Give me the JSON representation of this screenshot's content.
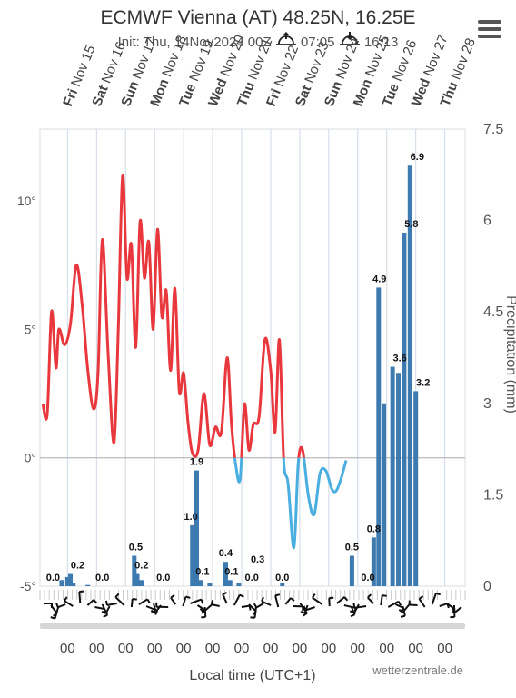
{
  "header": {
    "title": "ECMWF Vienna (AT) 48.25N, 16.25E",
    "init": "Init: Thu, 14Nov2024 00Z",
    "sunrise": "07:05",
    "sunset": "16:13"
  },
  "footer": {
    "xlabel": "Local time (UTC+1)",
    "credit": "wetterzentrale.de",
    "hour_label": "00"
  },
  "icons": {
    "menu": "hamburger-menu-icon",
    "sunrise": "sunrise-icon",
    "sunset": "sunset-icon"
  },
  "colors": {
    "temp_warm": "#e8383d",
    "temp_cold": "#4aaee0",
    "precip": "#3d7ab0",
    "grid": "#cfd8e6"
  },
  "chart_data": {
    "type": "line",
    "days": [
      "Fri Nov 15",
      "Sat Nov 16",
      "Sun Nov 17",
      "Mon Nov 18",
      "Tue Nov 19",
      "Wed Nov 20",
      "Thu Nov 21",
      "Fri Nov 22",
      "Sat Nov 23",
      "Sun Nov 24",
      "Mon Nov 25",
      "Tue Nov 26",
      "Wed Nov 27",
      "Thu Nov 28"
    ],
    "bold_days": [
      "Fri Nov 15",
      "Sat Nov 16",
      "Sun Nov 17",
      "Mon Nov 18",
      "Tue Nov 19",
      "Wed Nov 20",
      "Thu Nov 21"
    ],
    "x_range_days": [
      -0.95,
      13.7
    ],
    "y_left": {
      "ticks": [
        -5,
        0,
        5,
        10
      ],
      "tick_labels": [
        "-5°",
        "0°",
        "5°",
        "10°"
      ],
      "range": [
        -5,
        12.8
      ]
    },
    "y_right": {
      "label": "Precipitation (mm)",
      "ticks": [
        0,
        1.5,
        3,
        4.5,
        6,
        7.5
      ],
      "tick_labels": [
        "0",
        "1.5",
        "3",
        "4.5",
        "6",
        "7.5"
      ],
      "range": [
        0,
        7.5
      ]
    },
    "temperature": {
      "x": [
        -0.85,
        -0.7,
        -0.55,
        -0.4,
        -0.3,
        -0.1,
        0.1,
        0.3,
        0.5,
        0.7,
        0.9,
        1.05,
        1.2,
        1.4,
        1.6,
        1.75,
        1.9,
        2.05,
        2.2,
        2.35,
        2.5,
        2.65,
        2.8,
        2.95,
        3.1,
        3.25,
        3.4,
        3.55,
        3.7,
        3.85,
        4.0,
        4.15,
        4.3,
        4.5,
        4.7,
        4.9,
        5.1,
        5.3,
        5.5,
        5.65,
        5.8,
        5.95,
        6.1,
        6.25,
        6.4,
        6.6,
        6.8,
        7.0,
        7.15,
        7.3,
        7.45,
        7.6,
        7.8,
        7.95,
        8.1,
        8.3,
        8.5,
        8.7,
        8.9,
        9.1,
        9.25,
        9.4,
        9.6,
        9.8,
        10.0,
        10.2,
        10.35,
        10.5,
        10.65,
        10.8,
        10.95,
        11.1,
        11.3,
        11.5,
        11.7,
        11.85,
        12.0,
        12.15,
        12.3,
        12.5,
        12.7,
        12.9,
        13.1,
        13.3,
        13.5
      ],
      "y": [
        2.1,
        1.7,
        5.7,
        3.5,
        5.0,
        4.4,
        5.2,
        7.5,
        6.0,
        3.4,
        1.9,
        3.3,
        8.5,
        4.0,
        0.6,
        5.1,
        11.0,
        7.0,
        8.3,
        4.3,
        9.2,
        7.0,
        8.4,
        5.0,
        8.9,
        5.5,
        6.5,
        3.4,
        6.6,
        2.6,
        3.3,
        1.4,
        0.2,
        0.3,
        2.5,
        0.5,
        1.2,
        1.0,
        3.9,
        1.3,
        -0.3,
        -0.8,
        2.1,
        0.3,
        1.3,
        1.6,
        4.6,
        3.4,
        1.0,
        4.6,
        -0.1,
        -1.0,
        -3.5,
        -0.2,
        0.3,
        -1.5,
        -2.2,
        -0.6,
        -0.5,
        -1.2,
        -1.3,
        -0.9,
        -0.1,
        null,
        null,
        null,
        null,
        null,
        null,
        null,
        null,
        null,
        null,
        null,
        null,
        null,
        null,
        null,
        null,
        null,
        null,
        null,
        null,
        null,
        null
      ]
    },
    "precipitation": {
      "x": [
        -0.2,
        0.0,
        0.1,
        0.2,
        0.7,
        2.3,
        2.4,
        2.55,
        4.3,
        4.45,
        4.6,
        4.9,
        5.45,
        5.6,
        5.9,
        7.4,
        9.8,
        10.55,
        10.72,
        10.9,
        11.2,
        11.4,
        11.6,
        11.8,
        12.0,
        12.2
      ],
      "values": [
        0.1,
        0.15,
        0.2,
        0.05,
        0.02,
        0.5,
        0.2,
        0.1,
        1.0,
        1.9,
        0.1,
        0.05,
        0.4,
        0.1,
        0.05,
        0.05,
        0.5,
        0.8,
        4.9,
        3.0,
        3.6,
        3.5,
        5.8,
        6.9,
        3.2,
        0.0
      ],
      "labels": [
        {
          "x": -0.5,
          "text": "0.0",
          "v": 0.0
        },
        {
          "x": 0.35,
          "text": "0.2",
          "v": 0.2
        },
        {
          "x": 1.2,
          "text": "0.0",
          "v": 0.0
        },
        {
          "x": 2.35,
          "text": "0.5",
          "v": 0.5
        },
        {
          "x": 2.55,
          "text": "0.2",
          "v": 0.2
        },
        {
          "x": 3.3,
          "text": "0.0",
          "v": 0.0
        },
        {
          "x": 4.25,
          "text": "1.0",
          "v": 1.0
        },
        {
          "x": 4.45,
          "text": "1.9",
          "v": 1.9
        },
        {
          "x": 4.65,
          "text": "0.1",
          "v": 0.1
        },
        {
          "x": 5.45,
          "text": "0.4",
          "v": 0.4
        },
        {
          "x": 5.65,
          "text": "0.1",
          "v": 0.1
        },
        {
          "x": 6.35,
          "text": "0.0",
          "v": 0.0
        },
        {
          "x": 6.55,
          "text": "0.3",
          "v": 0.3
        },
        {
          "x": 7.4,
          "text": "0.0",
          "v": 0.0
        },
        {
          "x": 9.8,
          "text": "0.5",
          "v": 0.5
        },
        {
          "x": 10.35,
          "text": "0.0",
          "v": 0.0
        },
        {
          "x": 10.55,
          "text": "0.8",
          "v": 0.8
        },
        {
          "x": 10.75,
          "text": "4.9",
          "v": 4.9
        },
        {
          "x": 11.45,
          "text": "3.6",
          "v": 3.6
        },
        {
          "x": 11.85,
          "text": "5.8",
          "v": 5.8
        },
        {
          "x": 12.05,
          "text": "6.9",
          "v": 6.9
        },
        {
          "x": 12.25,
          "text": "3.2",
          "v": 3.2
        }
      ]
    }
  }
}
